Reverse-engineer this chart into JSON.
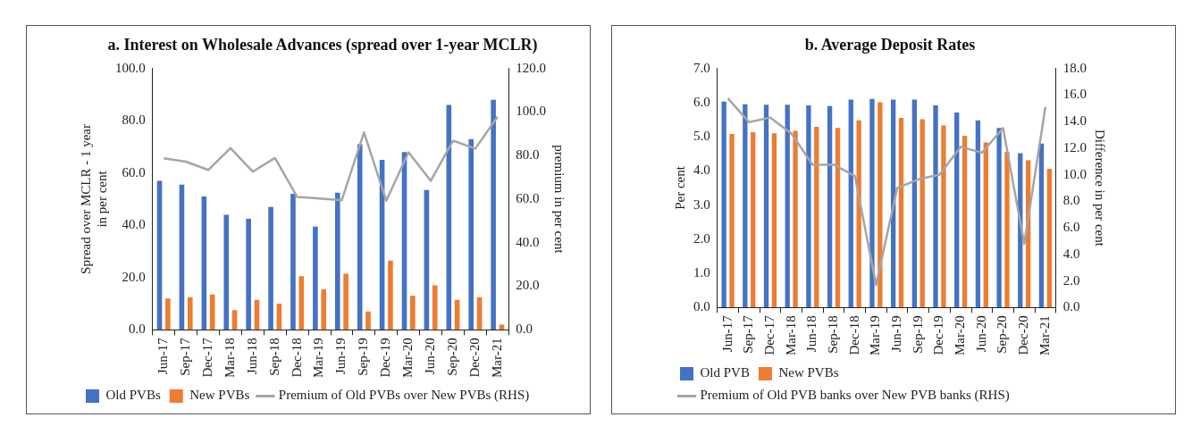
{
  "chart_data": [
    {
      "type": "bar",
      "title": "a. Interest on Wholesale Advances (spread over 1-year MCLR)",
      "ylabel": "Spread over MCLR - 1 year in per cent",
      "y2label": "premium in per cent",
      "categories": [
        "Jun-17",
        "Sep-17",
        "Dec-17",
        "Mar-18",
        "Jun-18",
        "Sep-18",
        "Dec-18",
        "Mar-19",
        "Jun-19",
        "Sep-19",
        "Dec-19",
        "Mar-20",
        "Jun-20",
        "Sep-20",
        "Dec-20",
        "Mar-21"
      ],
      "series": [
        {
          "name": "Old PVBs",
          "color": "#4472c4",
          "values": [
            57,
            55.5,
            51,
            44,
            42.5,
            47,
            52,
            39.5,
            52.5,
            71,
            65,
            68,
            53.5,
            86,
            73,
            88
          ]
        },
        {
          "name": "New PVBs",
          "color": "#ed7d31",
          "values": [
            12,
            12.5,
            13.5,
            7.5,
            11.5,
            10,
            20.5,
            15.5,
            21.5,
            7,
            26.5,
            13,
            17,
            11.5,
            12.5,
            2
          ]
        },
        {
          "name": "Premium of Old PVBs over New PVBs (RHS)",
          "type": "line",
          "axis": "y2",
          "color": "#a5a5a5",
          "values": [
            78.7,
            77.2,
            73.4,
            83.4,
            72.6,
            78.9,
            61,
            60.3,
            59.5,
            90.6,
            59.3,
            81.5,
            68.4,
            86.8,
            83.2,
            97.8
          ]
        }
      ],
      "ylim": [
        0,
        100
      ],
      "yticks": [
        {
          "value": 0,
          "label": "0.0"
        },
        {
          "value": 20,
          "label": "20.0"
        },
        {
          "value": 40,
          "label": "40.0"
        },
        {
          "value": 60,
          "label": "60.0"
        },
        {
          "value": 80,
          "label": "80.0"
        },
        {
          "value": 100,
          "label": "100.0"
        }
      ],
      "y2lim": [
        0,
        120
      ],
      "y2ticks": [
        {
          "value": 0,
          "label": "0.0"
        },
        {
          "value": 20,
          "label": "20.0"
        },
        {
          "value": 40,
          "label": "40.0"
        },
        {
          "value": 60,
          "label": "60.0"
        },
        {
          "value": 80,
          "label": "80.0"
        },
        {
          "value": 100,
          "label": "100.0"
        },
        {
          "value": 120,
          "label": "120.0"
        }
      ],
      "legend": "bottom",
      "marker": "none"
    },
    {
      "type": "bar",
      "title": "b. Average Deposit Rates",
      "ylabel": "Per cent",
      "y2label": "Difference in per cent",
      "categories": [
        "Jun-17",
        "Sep-17",
        "Dec-17",
        "Mar-18",
        "Jun-18",
        "Sep-18",
        "Dec-18",
        "Mar-19",
        "Jun-19",
        "Sep-19",
        "Dec-19",
        "Mar-20",
        "Jun-20",
        "Sep-20",
        "Dec-20",
        "Mar-21"
      ],
      "series": [
        {
          "name": "Old PVB",
          "color": "#4472c4",
          "values": [
            6.03,
            5.95,
            5.94,
            5.94,
            5.92,
            5.9,
            6.09,
            6.11,
            6.09,
            6.09,
            5.92,
            5.71,
            5.48,
            5.26,
            4.52,
            4.8
          ]
        },
        {
          "name": "New PVBs",
          "color": "#ed7d31",
          "values": [
            5.08,
            5.13,
            5.1,
            5.17,
            5.29,
            5.26,
            5.48,
            6.01,
            5.55,
            5.51,
            5.33,
            5.03,
            4.83,
            4.56,
            4.31,
            4.06
          ]
        },
        {
          "name": "Premium of Old PVB banks over New PVB banks (RHS)",
          "type": "line",
          "axis": "y2",
          "color": "#a5a5a5",
          "values": [
            15.75,
            13.95,
            14.3,
            13.1,
            10.75,
            10.75,
            9.9,
            1.7,
            9,
            9.65,
            10,
            12.1,
            11.65,
            13.5,
            4.8,
            15.1
          ]
        }
      ],
      "ylim": [
        0,
        7
      ],
      "yticks": [
        {
          "value": 0,
          "label": "0.0"
        },
        {
          "value": 1,
          "label": "1.0"
        },
        {
          "value": 2,
          "label": "2.0"
        },
        {
          "value": 3,
          "label": "3.0"
        },
        {
          "value": 4,
          "label": "4.0"
        },
        {
          "value": 5,
          "label": "5.0"
        },
        {
          "value": 6,
          "label": "6.0"
        },
        {
          "value": 7,
          "label": "7.0"
        }
      ],
      "y2lim": [
        0,
        18
      ],
      "y2ticks": [
        {
          "value": 0,
          "label": "0.0"
        },
        {
          "value": 2,
          "label": "2.0"
        },
        {
          "value": 4,
          "label": "4.0"
        },
        {
          "value": 6,
          "label": "6.0"
        },
        {
          "value": 8,
          "label": "8.0"
        },
        {
          "value": 10,
          "label": "10.0"
        },
        {
          "value": 12,
          "label": "12.0"
        },
        {
          "value": 14,
          "label": "14.0"
        },
        {
          "value": 16,
          "label": "16.0"
        },
        {
          "value": 18,
          "label": "18.0"
        }
      ],
      "legend": "bottom",
      "marker": "none"
    }
  ]
}
